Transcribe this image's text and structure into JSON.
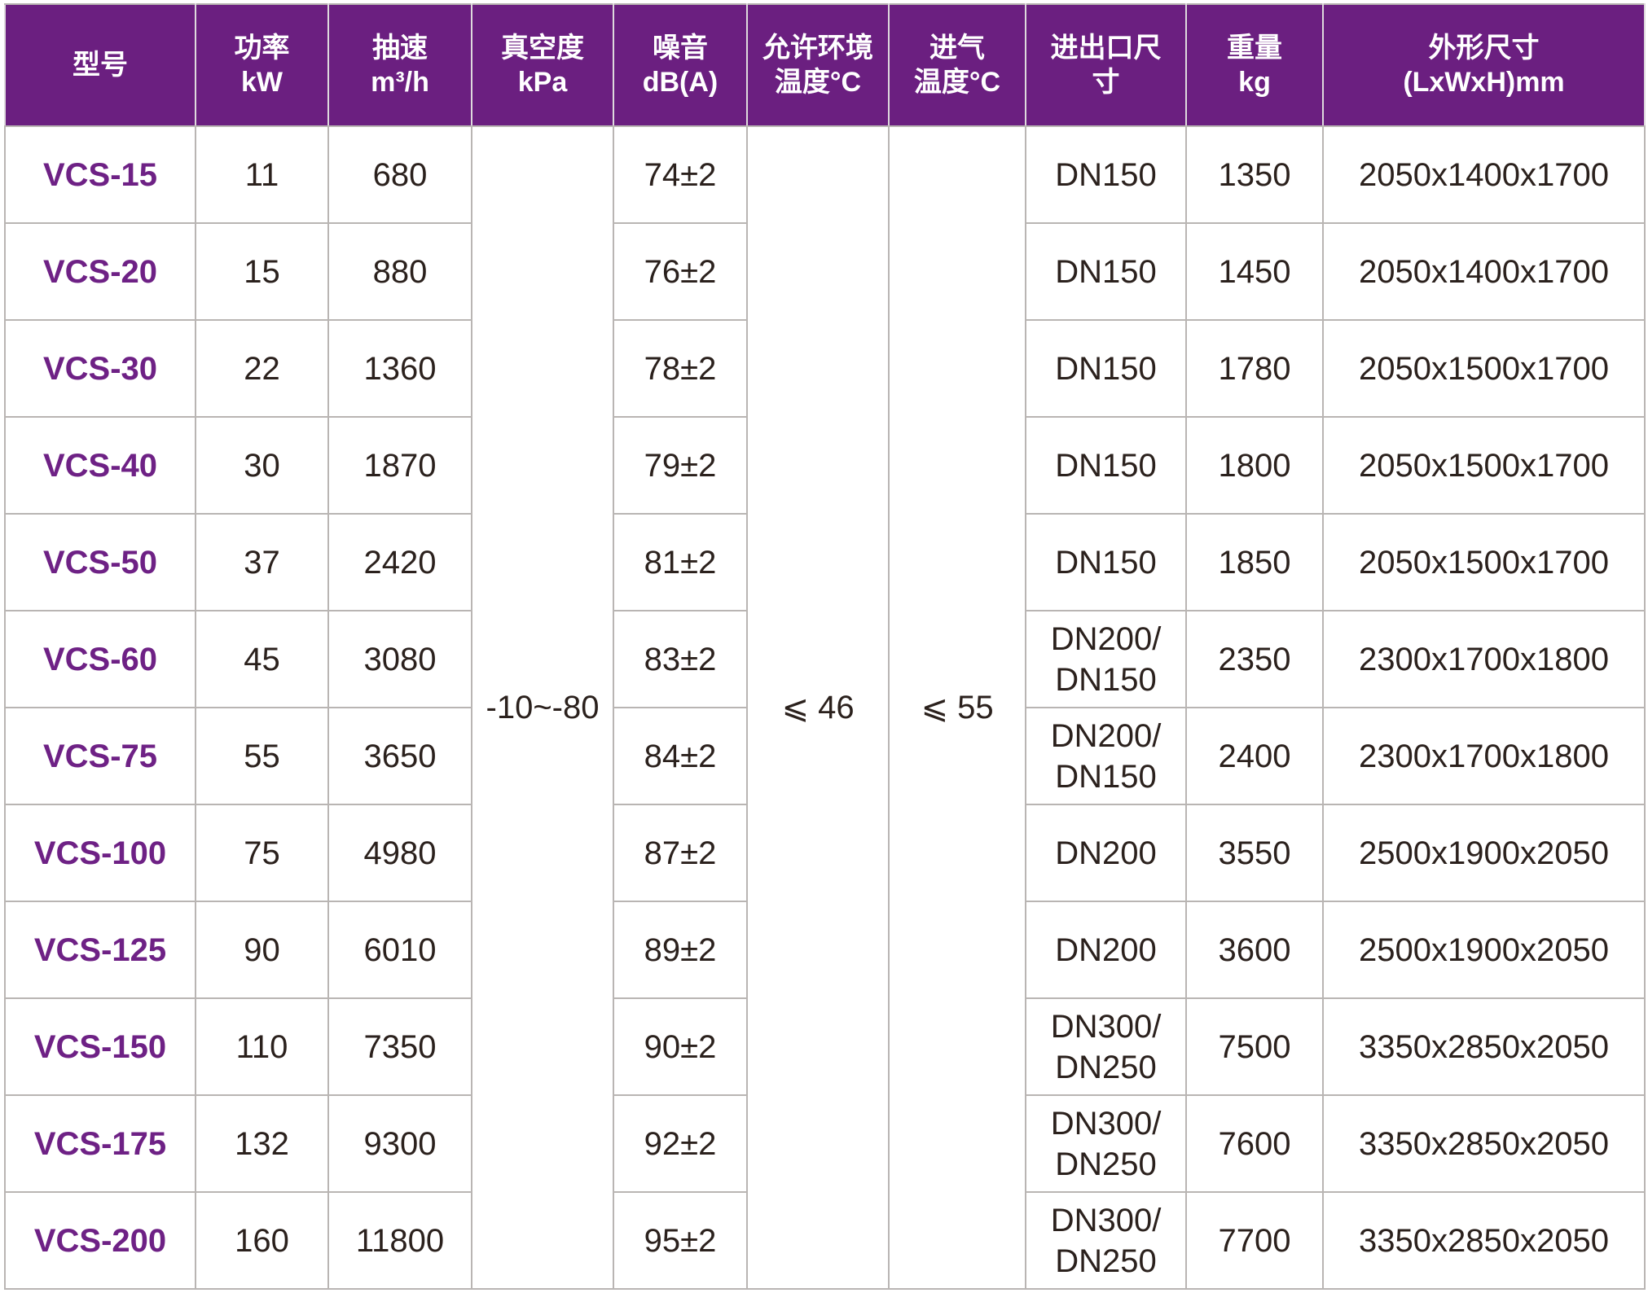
{
  "table": {
    "columns": [
      {
        "id": "model",
        "label": "型号"
      },
      {
        "id": "power",
        "label": "功率\nkW"
      },
      {
        "id": "speed",
        "label": "抽速\nm³/h"
      },
      {
        "id": "vacuum",
        "label": "真空度\nkPa"
      },
      {
        "id": "noise",
        "label": "噪音\ndB(A)"
      },
      {
        "id": "ambient",
        "label": "允许环境\n温度°C"
      },
      {
        "id": "intake",
        "label": "进气\n温度°C"
      },
      {
        "id": "ports",
        "label": "进出口尺\n寸"
      },
      {
        "id": "weight",
        "label": "重量\nkg"
      },
      {
        "id": "dims",
        "label": "外形尺寸\n(LxWxH)mm"
      }
    ],
    "merged": {
      "vacuum_kpa": "-10~-80",
      "ambient_temp_c": "⩽ 46",
      "intake_temp_c": "⩽ 55"
    },
    "rows": [
      {
        "model": "VCS-15",
        "power_kw": "11",
        "speed_m3h": "680",
        "noise_db": "74±2",
        "ports": "DN150",
        "weight_kg": "1350",
        "dims_mm": "2050x1400x1700"
      },
      {
        "model": "VCS-20",
        "power_kw": "15",
        "speed_m3h": "880",
        "noise_db": "76±2",
        "ports": "DN150",
        "weight_kg": "1450",
        "dims_mm": "2050x1400x1700"
      },
      {
        "model": "VCS-30",
        "power_kw": "22",
        "speed_m3h": "1360",
        "noise_db": "78±2",
        "ports": "DN150",
        "weight_kg": "1780",
        "dims_mm": "2050x1500x1700"
      },
      {
        "model": "VCS-40",
        "power_kw": "30",
        "speed_m3h": "1870",
        "noise_db": "79±2",
        "ports": "DN150",
        "weight_kg": "1800",
        "dims_mm": "2050x1500x1700"
      },
      {
        "model": "VCS-50",
        "power_kw": "37",
        "speed_m3h": "2420",
        "noise_db": "81±2",
        "ports": "DN150",
        "weight_kg": "1850",
        "dims_mm": "2050x1500x1700"
      },
      {
        "model": "VCS-60",
        "power_kw": "45",
        "speed_m3h": "3080",
        "noise_db": "83±2",
        "ports": "DN200/\nDN150",
        "weight_kg": "2350",
        "dims_mm": "2300x1700x1800"
      },
      {
        "model": "VCS-75",
        "power_kw": "55",
        "speed_m3h": "3650",
        "noise_db": "84±2",
        "ports": "DN200/\nDN150",
        "weight_kg": "2400",
        "dims_mm": "2300x1700x1800"
      },
      {
        "model": "VCS-100",
        "power_kw": "75",
        "speed_m3h": "4980",
        "noise_db": "87±2",
        "ports": "DN200",
        "weight_kg": "3550",
        "dims_mm": "2500x1900x2050"
      },
      {
        "model": "VCS-125",
        "power_kw": "90",
        "speed_m3h": "6010",
        "noise_db": "89±2",
        "ports": "DN200",
        "weight_kg": "3600",
        "dims_mm": "2500x1900x2050"
      },
      {
        "model": "VCS-150",
        "power_kw": "110",
        "speed_m3h": "7350",
        "noise_db": "90±2",
        "ports": "DN300/\nDN250",
        "weight_kg": "7500",
        "dims_mm": "3350x2850x2050"
      },
      {
        "model": "VCS-175",
        "power_kw": "132",
        "speed_m3h": "9300",
        "noise_db": "92±2",
        "ports": "DN300/\nDN250",
        "weight_kg": "7600",
        "dims_mm": "3350x2850x2050"
      },
      {
        "model": "VCS-200",
        "power_kw": "160",
        "speed_m3h": "11800",
        "noise_db": "95±2",
        "ports": "DN300/\nDN250",
        "weight_kg": "7700",
        "dims_mm": "3350x2850x2050"
      }
    ]
  },
  "colors": {
    "header_bg": "#6B1F80",
    "model_text": "#6E2185",
    "grid_line": "#B9B5B3",
    "body_text": "#2B211D"
  }
}
